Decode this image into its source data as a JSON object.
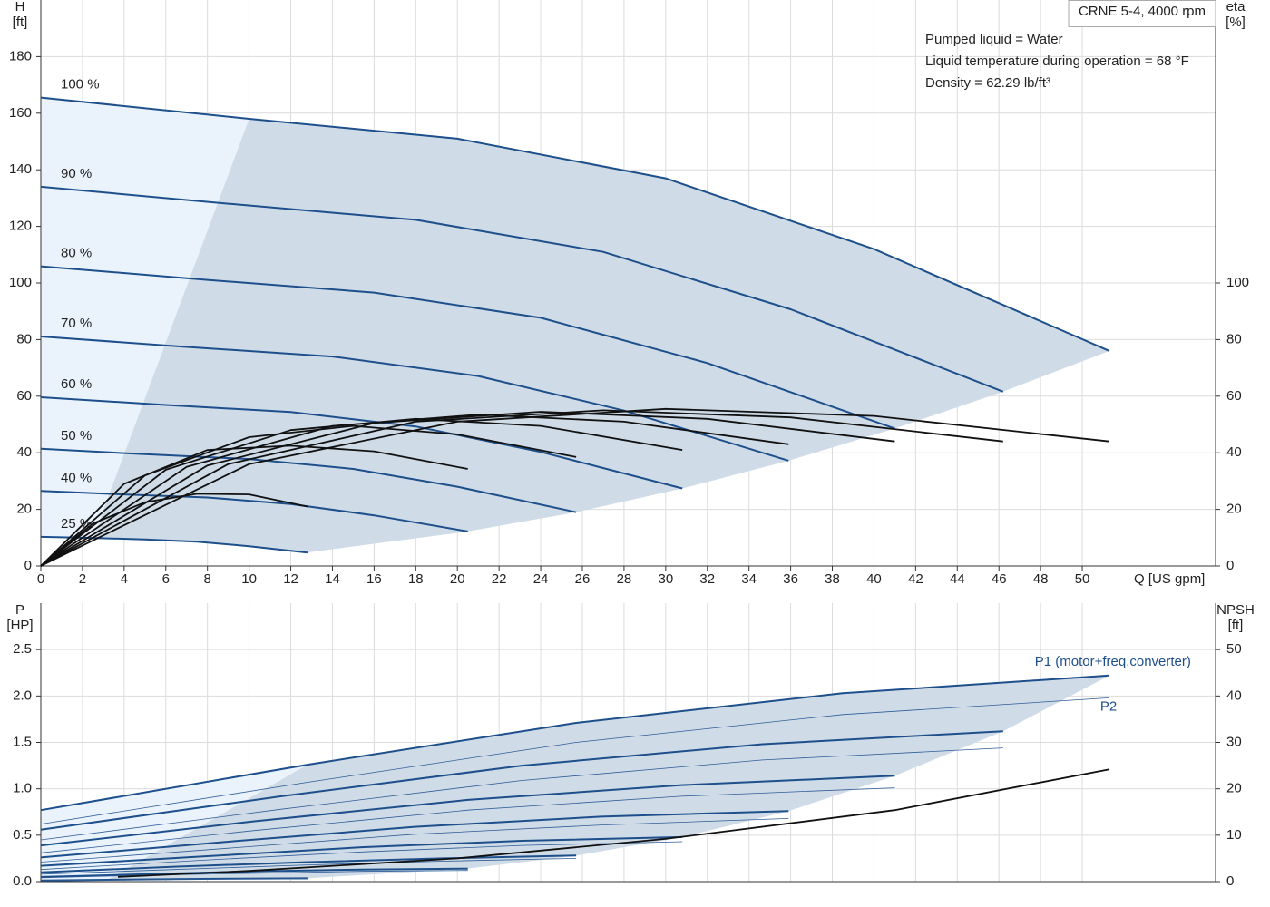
{
  "chart_data": [
    {
      "type": "line",
      "title": "CRNE 5-4, 4000 rpm",
      "annotations": [
        "Pumped liquid = Water",
        "Liquid temperature during operation = 68 °F",
        "Density = 62.29 lb/ft³"
      ],
      "ylabel": "H",
      "yunit": "[ft]",
      "y2label": "eta",
      "y2unit": "[%]",
      "xlabel": "Q [US gpm]",
      "xlim": [
        0,
        56.4
      ],
      "ylim": [
        0,
        200
      ],
      "y2lim": [
        0,
        200
      ],
      "grid": true,
      "xticks": [
        0,
        2,
        4,
        6,
        8,
        10,
        12,
        14,
        16,
        18,
        20,
        22,
        24,
        26,
        28,
        30,
        32,
        34,
        36,
        38,
        40,
        42,
        44,
        46,
        48,
        50
      ],
      "yticks": [
        0,
        20,
        40,
        60,
        80,
        100,
        120,
        140,
        160,
        180
      ],
      "y2ticks": [
        0,
        20,
        40,
        60,
        80,
        100
      ],
      "series": [
        {
          "name": "100 %",
          "color": "#1d4f8b",
          "linewidth": 2,
          "x": [
            0,
            10,
            20,
            30,
            40,
            51.3
          ],
          "values": [
            165.5,
            158,
            151,
            137,
            112,
            76
          ]
        },
        {
          "name": "90 %",
          "color": "#1d4f8b",
          "linewidth": 2,
          "x": [
            0,
            9,
            18,
            27,
            36,
            46.2
          ],
          "values": [
            134,
            128,
            122.3,
            111,
            90.7,
            61.6
          ]
        },
        {
          "name": "80 %",
          "color": "#1d4f8b",
          "linewidth": 2,
          "x": [
            0,
            8,
            16,
            24,
            32,
            41
          ],
          "values": [
            105.9,
            101.1,
            96.6,
            87.7,
            71.7,
            48.6
          ]
        },
        {
          "name": "70 %",
          "color": "#1d4f8b",
          "linewidth": 2,
          "x": [
            0,
            7,
            14,
            21,
            28,
            35.9
          ],
          "values": [
            81.1,
            77.4,
            74,
            67.1,
            54.9,
            37.2
          ]
        },
        {
          "name": "60 %",
          "color": "#1d4f8b",
          "linewidth": 2,
          "x": [
            0,
            6,
            12,
            18,
            24,
            30.8
          ],
          "values": [
            59.6,
            56.9,
            54.4,
            49.3,
            40.3,
            27.4
          ]
        },
        {
          "name": "50 %",
          "color": "#1d4f8b",
          "linewidth": 2,
          "x": [
            0,
            5,
            10,
            15,
            20,
            25.7
          ],
          "values": [
            41.4,
            39.5,
            37.8,
            34.3,
            28,
            19
          ]
        },
        {
          "name": "40 %",
          "color": "#1d4f8b",
          "linewidth": 2,
          "x": [
            0,
            4,
            8,
            12,
            16,
            20.5
          ],
          "values": [
            26.5,
            25.3,
            24.2,
            21.9,
            17.9,
            12.2
          ]
        },
        {
          "name": "25 %",
          "color": "#1d4f8b",
          "linewidth": 2,
          "x": [
            0,
            2.5,
            5,
            7.5,
            10,
            12.8
          ],
          "values": [
            10.3,
            9.9,
            9.4,
            8.6,
            7,
            4.75
          ]
        },
        {
          "axis": "y2",
          "color": "#111111",
          "linewidth": 1.8,
          "x": [
            0,
            10,
            20,
            30,
            40,
            51.3
          ],
          "values": [
            0,
            36,
            51,
            55.5,
            53,
            44
          ]
        },
        {
          "axis": "y2",
          "color": "#111111",
          "linewidth": 1.8,
          "x": [
            0,
            9,
            18,
            27,
            36,
            46.2
          ],
          "values": [
            0,
            36,
            51,
            55,
            52.5,
            44
          ]
        },
        {
          "axis": "y2",
          "color": "#111111",
          "linewidth": 1.8,
          "x": [
            0,
            8,
            16,
            24,
            32,
            41
          ],
          "values": [
            0,
            35.5,
            50.5,
            54.5,
            52,
            44
          ]
        },
        {
          "axis": "y2",
          "color": "#111111",
          "linewidth": 1.8,
          "x": [
            0,
            7,
            14,
            21,
            28,
            35.9
          ],
          "values": [
            0,
            35,
            49.5,
            53.5,
            51,
            43
          ]
        },
        {
          "axis": "y2",
          "color": "#111111",
          "linewidth": 1.8,
          "x": [
            0,
            6,
            12,
            18,
            24,
            30.8
          ],
          "values": [
            0,
            34,
            48,
            52,
            49.5,
            41
          ]
        },
        {
          "axis": "y2",
          "color": "#111111",
          "linewidth": 1.8,
          "x": [
            0,
            5,
            10,
            15,
            20,
            25.7
          ],
          "values": [
            0,
            32,
            45.5,
            49.5,
            46.5,
            38.5
          ]
        },
        {
          "axis": "y2",
          "color": "#111111",
          "linewidth": 1.8,
          "x": [
            0,
            4,
            8,
            12,
            16,
            20.5
          ],
          "values": [
            0,
            29,
            41,
            42.5,
            40.5,
            34.3
          ]
        },
        {
          "axis": "y2",
          "color": "#111111",
          "linewidth": 1.8,
          "x": [
            0,
            2.5,
            5,
            7.5,
            10,
            12.8
          ],
          "values": [
            0,
            15,
            22.5,
            25.5,
            25.3,
            21
          ]
        }
      ]
    },
    {
      "type": "line",
      "ylabel": "P",
      "yunit": "[HP]",
      "y2label": "NPSH",
      "y2unit": "[ft]",
      "xlim": [
        0,
        56.4
      ],
      "ylim": [
        0,
        3.0
      ],
      "y2lim": [
        0,
        60
      ],
      "grid": true,
      "yticks": [
        {
          "value": 0,
          "label": "0.0"
        },
        0.5,
        {
          "value": 1,
          "label": "1.0"
        },
        1.5,
        {
          "value": 2,
          "label": "2.0"
        },
        2.5
      ],
      "y2ticks": [
        0,
        10,
        20,
        30,
        40,
        50
      ],
      "series": [
        {
          "name": "P1 (motor+freq.converter)",
          "color": "#1d4f8b",
          "linewidth": 2,
          "x": [
            0,
            12.8,
            25.7,
            38.5,
            51.3
          ],
          "values": [
            0.77,
            1.26,
            1.71,
            2.03,
            2.22
          ]
        },
        {
          "color": "#1d4f8b",
          "linewidth": 2,
          "x": [
            0,
            11.55,
            23.1,
            34.65,
            46.2
          ],
          "values": [
            0.56,
            0.92,
            1.25,
            1.48,
            1.62
          ]
        },
        {
          "color": "#1d4f8b",
          "linewidth": 2,
          "x": [
            0,
            10.25,
            20.5,
            30.75,
            41
          ],
          "values": [
            0.39,
            0.65,
            0.88,
            1.04,
            1.14
          ]
        },
        {
          "color": "#1d4f8b",
          "linewidth": 2,
          "x": [
            0,
            9,
            17.95,
            26.9,
            35.9
          ],
          "values": [
            0.26,
            0.43,
            0.59,
            0.7,
            0.76
          ]
        },
        {
          "color": "#1d4f8b",
          "linewidth": 2,
          "x": [
            0,
            7.7,
            15.4,
            23.1,
            30.8
          ],
          "values": [
            0.17,
            0.27,
            0.37,
            0.44,
            0.48
          ]
        },
        {
          "color": "#1d4f8b",
          "linewidth": 2,
          "x": [
            0,
            6.4,
            12.85,
            19.3,
            25.7
          ],
          "values": [
            0.1,
            0.16,
            0.21,
            0.25,
            0.28
          ]
        },
        {
          "color": "#1d4f8b",
          "linewidth": 2,
          "x": [
            0,
            5.1,
            10.25,
            15.4,
            20.5
          ],
          "values": [
            0.05,
            0.08,
            0.11,
            0.13,
            0.14
          ]
        },
        {
          "color": "#1d4f8b",
          "linewidth": 2,
          "x": [
            0,
            3.2,
            6.4,
            9.6,
            12.8
          ],
          "values": [
            0.012,
            0.02,
            0.027,
            0.032,
            0.035
          ]
        },
        {
          "name": "P2",
          "color": "#2f5d97",
          "linewidth": 0.8,
          "x": [
            0,
            12.8,
            25.7,
            38.5,
            51.3
          ],
          "values": [
            0.62,
            1.07,
            1.5,
            1.8,
            1.98
          ]
        },
        {
          "color": "#2f5d97",
          "linewidth": 0.8,
          "x": [
            0,
            11.55,
            23.1,
            34.65,
            46.2
          ],
          "values": [
            0.45,
            0.78,
            1.09,
            1.31,
            1.44
          ]
        },
        {
          "color": "#2f5d97",
          "linewidth": 0.8,
          "x": [
            0,
            10.25,
            20.5,
            30.75,
            41
          ],
          "values": [
            0.31,
            0.55,
            0.77,
            0.92,
            1.01
          ]
        },
        {
          "color": "#2f5d97",
          "linewidth": 0.8,
          "x": [
            0,
            9,
            17.95,
            26.9,
            35.9
          ],
          "values": [
            0.21,
            0.36,
            0.51,
            0.61,
            0.68
          ]
        },
        {
          "color": "#2f5d97",
          "linewidth": 0.8,
          "x": [
            0,
            7.7,
            15.4,
            23.1,
            30.8
          ],
          "values": [
            0.13,
            0.23,
            0.32,
            0.39,
            0.43
          ]
        },
        {
          "color": "#2f5d97",
          "linewidth": 0.8,
          "x": [
            0,
            6.4,
            12.85,
            19.3,
            25.7
          ],
          "values": [
            0.08,
            0.13,
            0.18,
            0.22,
            0.25
          ]
        },
        {
          "color": "#2f5d97",
          "linewidth": 0.8,
          "x": [
            0,
            5.1,
            10.25,
            15.4,
            20.5
          ],
          "values": [
            0.04,
            0.07,
            0.09,
            0.11,
            0.12
          ]
        },
        {
          "color": "#2f5d97",
          "linewidth": 0.8,
          "x": [
            0,
            3.2,
            6.4,
            9.6,
            12.8
          ],
          "values": [
            0.01,
            0.016,
            0.023,
            0.028,
            0.031
          ]
        },
        {
          "axis": "y2",
          "color": "#111111",
          "linewidth": 1.8,
          "x": [
            3.7,
            10,
            20,
            30,
            41,
            51.3
          ],
          "values": [
            1,
            2.3,
            5,
            9.2,
            15.4,
            24.2
          ]
        }
      ]
    }
  ]
}
